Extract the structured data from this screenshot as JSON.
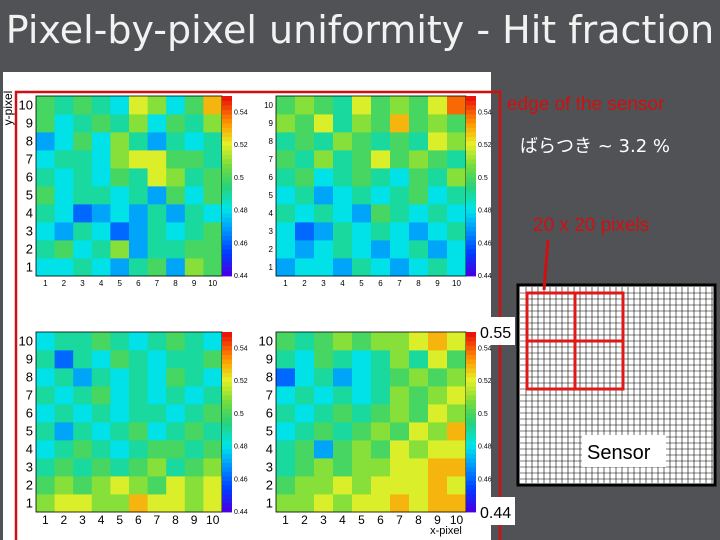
{
  "slide": {
    "title": "Pixel-by-pixel uniformity - Hit fraction"
  },
  "annotations": {
    "edge_label": "edge of the sensor",
    "spread_label": "ばらつき ~ 3.2 %",
    "pixel_count_label": "20 x 20 pixels",
    "scale_max_label": "0.55",
    "scale_min_label": "0.44",
    "sensor_label": "Sensor"
  },
  "chart_data": [
    {
      "type": "heatmap",
      "panel": "top-left",
      "xlabel": "",
      "ylabel": "y-pixel",
      "x": [
        1,
        2,
        3,
        4,
        5,
        6,
        7,
        8,
        9,
        10
      ],
      "y": [
        1,
        2,
        3,
        4,
        5,
        6,
        7,
        8,
        9,
        10
      ],
      "z_range": [
        0.44,
        0.55
      ],
      "colorbar_ticks": [
        "0.54",
        "0.52",
        "0.5",
        "0.48",
        "0.46",
        "0.44"
      ],
      "values": [
        [
          0.48,
          0.48,
          0.49,
          0.48,
          0.47,
          0.49,
          0.5,
          0.47,
          0.51,
          0.5
        ],
        [
          0.49,
          0.5,
          0.48,
          0.49,
          0.51,
          0.47,
          0.49,
          0.49,
          0.5,
          0.5
        ],
        [
          0.48,
          0.47,
          0.49,
          0.48,
          0.46,
          0.47,
          0.49,
          0.48,
          0.49,
          0.5
        ],
        [
          0.49,
          0.48,
          0.46,
          0.47,
          0.48,
          0.47,
          0.49,
          0.47,
          0.49,
          0.48
        ],
        [
          0.5,
          0.48,
          0.49,
          0.49,
          0.48,
          0.49,
          0.47,
          0.5,
          0.48,
          0.5
        ],
        [
          0.49,
          0.48,
          0.49,
          0.48,
          0.5,
          0.49,
          0.52,
          0.51,
          0.49,
          0.5
        ],
        [
          0.48,
          0.49,
          0.49,
          0.48,
          0.51,
          0.52,
          0.52,
          0.5,
          0.5,
          0.49
        ],
        [
          0.47,
          0.48,
          0.5,
          0.48,
          0.51,
          0.49,
          0.47,
          0.49,
          0.48,
          0.49
        ],
        [
          0.5,
          0.48,
          0.49,
          0.5,
          0.49,
          0.51,
          0.48,
          0.5,
          0.49,
          0.51
        ],
        [
          0.5,
          0.49,
          0.5,
          0.49,
          0.48,
          0.52,
          0.51,
          0.48,
          0.5,
          0.53
        ]
      ]
    },
    {
      "type": "heatmap",
      "panel": "top-right",
      "xlabel": "",
      "ylabel": "",
      "x": [
        1,
        2,
        3,
        4,
        5,
        6,
        7,
        8,
        9,
        10
      ],
      "y": [
        1,
        2,
        3,
        4,
        5,
        6,
        7,
        8,
        9,
        10
      ],
      "z_range": [
        0.44,
        0.55
      ],
      "colorbar_ticks": [
        "0.54",
        "0.52",
        "0.5",
        "0.48",
        "0.46",
        "0.44"
      ],
      "values": [
        [
          0.47,
          0.48,
          0.48,
          0.47,
          0.49,
          0.48,
          0.47,
          0.48,
          0.49,
          0.48
        ],
        [
          0.48,
          0.47,
          0.48,
          0.49,
          0.48,
          0.47,
          0.48,
          0.49,
          0.47,
          0.48
        ],
        [
          0.48,
          0.46,
          0.47,
          0.49,
          0.48,
          0.49,
          0.48,
          0.47,
          0.48,
          0.49
        ],
        [
          0.49,
          0.48,
          0.49,
          0.48,
          0.47,
          0.5,
          0.49,
          0.48,
          0.49,
          0.48
        ],
        [
          0.48,
          0.49,
          0.47,
          0.48,
          0.49,
          0.48,
          0.49,
          0.5,
          0.48,
          0.49
        ],
        [
          0.49,
          0.5,
          0.48,
          0.49,
          0.5,
          0.49,
          0.48,
          0.5,
          0.49,
          0.51
        ],
        [
          0.5,
          0.49,
          0.51,
          0.49,
          0.5,
          0.52,
          0.5,
          0.51,
          0.5,
          0.49
        ],
        [
          0.49,
          0.5,
          0.49,
          0.51,
          0.5,
          0.49,
          0.5,
          0.49,
          0.52,
          0.51
        ],
        [
          0.51,
          0.5,
          0.52,
          0.49,
          0.51,
          0.5,
          0.53,
          0.5,
          0.51,
          0.5
        ],
        [
          0.5,
          0.51,
          0.5,
          0.49,
          0.52,
          0.5,
          0.51,
          0.5,
          0.52,
          0.54
        ]
      ]
    },
    {
      "type": "heatmap",
      "panel": "bottom-left",
      "xlabel": "",
      "ylabel": "",
      "x": [
        1,
        2,
        3,
        4,
        5,
        6,
        7,
        8,
        9,
        10
      ],
      "y": [
        1,
        2,
        3,
        4,
        5,
        6,
        7,
        8,
        9,
        10
      ],
      "z_range": [
        0.44,
        0.55
      ],
      "colorbar_ticks": [
        "0.54",
        "0.52",
        "0.5",
        "0.48",
        "0.46",
        "0.44"
      ],
      "values": [
        [
          0.51,
          0.52,
          0.52,
          0.51,
          0.51,
          0.53,
          0.52,
          0.52,
          0.51,
          0.52
        ],
        [
          0.5,
          0.51,
          0.5,
          0.51,
          0.52,
          0.51,
          0.5,
          0.52,
          0.51,
          0.52
        ],
        [
          0.49,
          0.5,
          0.49,
          0.5,
          0.49,
          0.5,
          0.51,
          0.49,
          0.5,
          0.51
        ],
        [
          0.48,
          0.49,
          0.5,
          0.49,
          0.48,
          0.49,
          0.5,
          0.5,
          0.49,
          0.5
        ],
        [
          0.49,
          0.47,
          0.49,
          0.48,
          0.49,
          0.5,
          0.48,
          0.49,
          0.5,
          0.49
        ],
        [
          0.48,
          0.49,
          0.48,
          0.49,
          0.48,
          0.49,
          0.49,
          0.48,
          0.49,
          0.5
        ],
        [
          0.49,
          0.48,
          0.49,
          0.5,
          0.48,
          0.49,
          0.48,
          0.49,
          0.48,
          0.49
        ],
        [
          0.48,
          0.49,
          0.47,
          0.49,
          0.48,
          0.49,
          0.48,
          0.5,
          0.49,
          0.48
        ],
        [
          0.49,
          0.46,
          0.49,
          0.48,
          0.5,
          0.49,
          0.48,
          0.49,
          0.49,
          0.5
        ],
        [
          0.48,
          0.49,
          0.49,
          0.5,
          0.49,
          0.48,
          0.49,
          0.5,
          0.49,
          0.48
        ]
      ]
    },
    {
      "type": "heatmap",
      "panel": "bottom-right",
      "xlabel": "x-pixel",
      "ylabel": "",
      "x": [
        1,
        2,
        3,
        4,
        5,
        6,
        7,
        8,
        9,
        10
      ],
      "y": [
        1,
        2,
        3,
        4,
        5,
        6,
        7,
        8,
        9,
        10
      ],
      "z_range": [
        0.44,
        0.55
      ],
      "colorbar_ticks": [
        "0.54",
        "0.52",
        "0.5",
        "0.48",
        "0.46",
        "0.44"
      ],
      "values": [
        [
          0.51,
          0.51,
          0.52,
          0.51,
          0.52,
          0.52,
          0.53,
          0.52,
          0.53,
          0.53
        ],
        [
          0.5,
          0.51,
          0.51,
          0.52,
          0.51,
          0.52,
          0.52,
          0.52,
          0.53,
          0.52
        ],
        [
          0.49,
          0.5,
          0.51,
          0.5,
          0.51,
          0.51,
          0.52,
          0.52,
          0.53,
          0.53
        ],
        [
          0.49,
          0.5,
          0.47,
          0.5,
          0.51,
          0.5,
          0.52,
          0.51,
          0.52,
          0.52
        ],
        [
          0.48,
          0.49,
          0.5,
          0.49,
          0.5,
          0.51,
          0.5,
          0.52,
          0.51,
          0.53
        ],
        [
          0.49,
          0.48,
          0.49,
          0.5,
          0.49,
          0.5,
          0.51,
          0.5,
          0.52,
          0.51
        ],
        [
          0.48,
          0.49,
          0.48,
          0.49,
          0.48,
          0.49,
          0.51,
          0.5,
          0.51,
          0.52
        ],
        [
          0.46,
          0.48,
          0.49,
          0.47,
          0.48,
          0.49,
          0.5,
          0.51,
          0.5,
          0.51
        ],
        [
          0.49,
          0.48,
          0.5,
          0.49,
          0.48,
          0.49,
          0.51,
          0.49,
          0.52,
          0.5
        ],
        [
          0.5,
          0.49,
          0.5,
          0.51,
          0.5,
          0.51,
          0.51,
          0.52,
          0.53,
          0.52
        ]
      ]
    }
  ]
}
